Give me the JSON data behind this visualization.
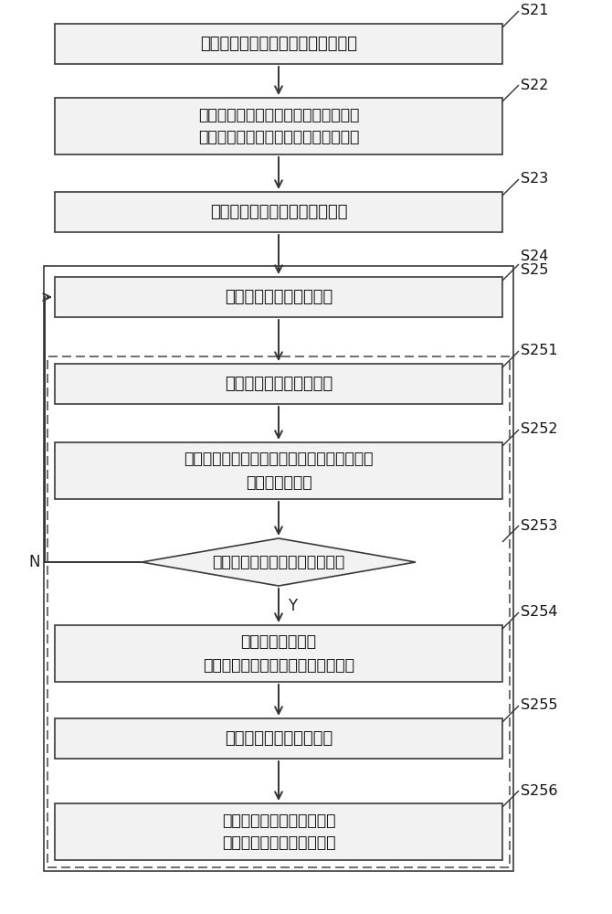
{
  "bg_color": "#ffffff",
  "box_fill": "#f2f2f2",
  "box_edge": "#3a3a3a",
  "arrow_color": "#333333",
  "text_color": "#111111",
  "steps": {
    "S21": {
      "label": "获取与用户意图对应的自然语言问句",
      "type": "rect",
      "lines": 1
    },
    "S22": {
      "label": "利用用户意图识别模型对自然语言问句\n进行自然语言的理解，以确定用户意图",
      "type": "rect",
      "lines": 2
    },
    "S23": {
      "label": "向用户推送询问用户编码的消息",
      "type": "rect",
      "lines": 1
    },
    "S24": {
      "label": "获取用户反馈的答复信息",
      "type": "rect",
      "lines": 1
    },
    "S251": {
      "label": "获取用户反馈的用户编码",
      "type": "rect",
      "lines": 1
    },
    "S252": {
      "label": "利用用户编码识别模型对用户编码进行识别，\n以得到用户编码",
      "type": "rect",
      "lines": 2
    },
    "S253": {
      "label": "判断识别出的用户编码是否正确",
      "type": "diamond",
      "lines": 1
    },
    "S254": {
      "label": "利用对话管理模型\n确定向用户推送询问查询时间的消息",
      "type": "rect",
      "lines": 2
    },
    "S255": {
      "label": "获取用户反馈的时间文本",
      "type": "rect",
      "lines": 1
    },
    "S256": {
      "label": "基于用户反馈的时间文本，\n向用户推送电费查询的结果",
      "type": "rect",
      "lines": 2
    }
  },
  "order": [
    "S21",
    "S22",
    "S23",
    "S24",
    "S251",
    "S252",
    "S253",
    "S254",
    "S255",
    "S256"
  ],
  "tags": {
    "S21": [
      "S21"
    ],
    "S22": [
      "S22"
    ],
    "S23": [
      "S23"
    ],
    "S24": [
      "S24",
      "S25"
    ],
    "S251": [
      "S251"
    ],
    "S252": [
      "S252"
    ],
    "S253": [
      "S253"
    ],
    "S254": [
      "S254"
    ],
    "S255": [
      "S255"
    ],
    "S256": [
      "S256"
    ]
  }
}
